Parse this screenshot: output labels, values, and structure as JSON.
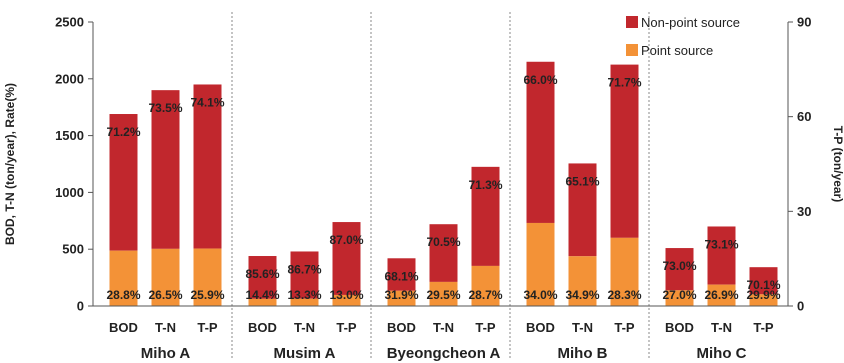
{
  "chart_data": {
    "type": "bar",
    "stacked": true,
    "ylabel_left": "BOD, T-N  (ton/year), Rate(%)",
    "ylabel_right": "T-P (ton/year)",
    "ylim_left": [
      0,
      2500
    ],
    "ylim_right": [
      0,
      90
    ],
    "yticks_left": [
      "0",
      "500",
      "1000",
      "1500",
      "2000",
      "2500"
    ],
    "yticks_right": [
      "0",
      "30",
      "60",
      "90"
    ],
    "legend": {
      "position": "top-right",
      "non_point": "Non-point source",
      "point": "Point source"
    },
    "colors": {
      "non_point": "#C1272D",
      "point": "#F39237"
    },
    "groups": [
      {
        "name": "Miho A",
        "bars": [
          {
            "label": "BOD",
            "axis": "left",
            "total": 1690,
            "point": 487,
            "point_pct": "28.8%",
            "non_point_pct": "71.2%"
          },
          {
            "label": "T-N",
            "axis": "left",
            "total": 1900,
            "point": 503,
            "point_pct": "26.5%",
            "non_point_pct": "73.5%"
          },
          {
            "label": "T-P",
            "axis": "right",
            "total": 70.2,
            "point": 18.2,
            "point_pct": "25.9%",
            "non_point_pct": "74.1%"
          }
        ]
      },
      {
        "name": "Musim A",
        "bars": [
          {
            "label": "BOD",
            "axis": "left",
            "total": 440,
            "point": 63,
            "point_pct": "14.4%",
            "non_point_pct": "85.6%"
          },
          {
            "label": "T-N",
            "axis": "left",
            "total": 480,
            "point": 64,
            "point_pct": "13.3%",
            "non_point_pct": "86.7%"
          },
          {
            "label": "T-P",
            "axis": "right",
            "total": 26.6,
            "point": 3.5,
            "point_pct": "13.0%",
            "non_point_pct": "87.0%"
          }
        ]
      },
      {
        "name": "Byeongcheon A",
        "bars": [
          {
            "label": "BOD",
            "axis": "left",
            "total": 420,
            "point": 134,
            "point_pct": "31.9%",
            "non_point_pct": "68.1%"
          },
          {
            "label": "T-N",
            "axis": "left",
            "total": 720,
            "point": 212,
            "point_pct": "29.5%",
            "non_point_pct": "70.5%"
          },
          {
            "label": "T-P",
            "axis": "right",
            "total": 44.1,
            "point": 12.7,
            "point_pct": "28.7%",
            "non_point_pct": "71.3%"
          }
        ]
      },
      {
        "name": "Miho B",
        "bars": [
          {
            "label": "BOD",
            "axis": "left",
            "total": 2150,
            "point": 731,
            "point_pct": "34.0%",
            "non_point_pct": "66.0%"
          },
          {
            "label": "T-N",
            "axis": "left",
            "total": 1255,
            "point": 438,
            "point_pct": "34.9%",
            "non_point_pct": "65.1%"
          },
          {
            "label": "T-P",
            "axis": "right",
            "total": 76.5,
            "point": 21.6,
            "point_pct": "28.3%",
            "non_point_pct": "71.7%"
          }
        ]
      },
      {
        "name": "Miho C",
        "bars": [
          {
            "label": "BOD",
            "axis": "left",
            "total": 510,
            "point": 138,
            "point_pct": "27.0%",
            "non_point_pct": "73.0%"
          },
          {
            "label": "T-N",
            "axis": "left",
            "total": 700,
            "point": 188,
            "point_pct": "26.9%",
            "non_point_pct": "73.1%"
          },
          {
            "label": "T-P",
            "axis": "right",
            "total": 12.3,
            "point": 3.7,
            "point_pct": "29.9%",
            "non_point_pct": "70.1%"
          }
        ]
      }
    ]
  }
}
